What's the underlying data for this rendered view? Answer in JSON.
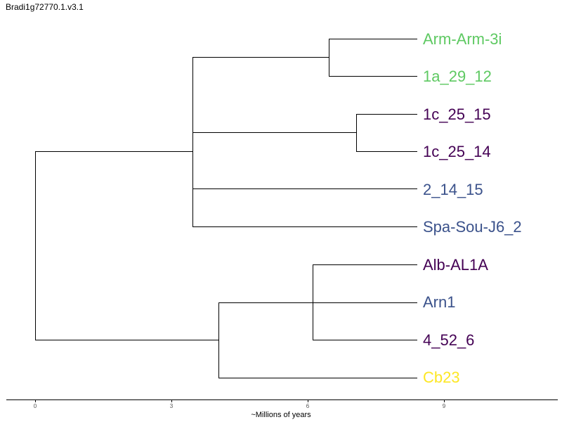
{
  "title": "Bradi1g72770.1.v3.1",
  "x_axis": {
    "label": "~Millions of years",
    "ticks": [
      "0",
      "3",
      "6",
      "9"
    ]
  },
  "colors": {
    "green": "#5ec962",
    "purple": "#440154",
    "blue": "#3b528b",
    "yellow": "#fde725"
  },
  "tips": [
    {
      "label": "Arm-Arm-3i",
      "color": "#5ec962"
    },
    {
      "label": "1a_29_12",
      "color": "#5ec962"
    },
    {
      "label": "1c_25_15",
      "color": "#440154"
    },
    {
      "label": "1c_25_14",
      "color": "#440154"
    },
    {
      "label": "2_14_15",
      "color": "#3b528b"
    },
    {
      "label": "Spa-Sou-J6_2",
      "color": "#3b528b"
    },
    {
      "label": "Alb-AL1A",
      "color": "#440154"
    },
    {
      "label": "Arn1",
      "color": "#3b528b"
    },
    {
      "label": "4_52_6",
      "color": "#440154"
    },
    {
      "label": "Cb23",
      "color": "#fde725"
    }
  ]
}
